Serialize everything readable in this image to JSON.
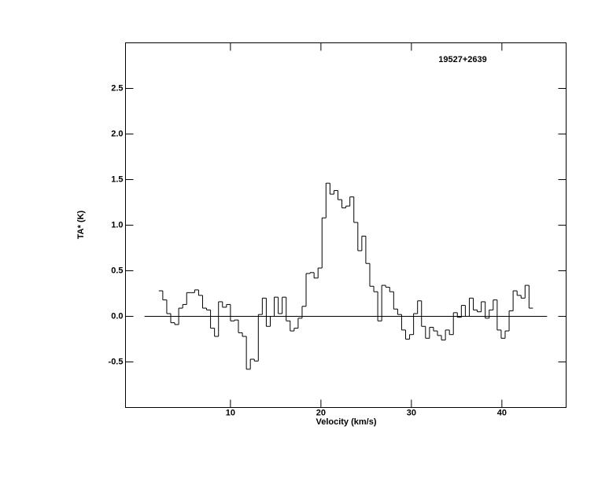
{
  "chart_data": {
    "type": "step",
    "title": "19527+2639",
    "xlabel": "Velocity (km/s)",
    "ylabel": "TA* (K)",
    "xlim": [
      -1.6,
      47.1
    ],
    "ylim": [
      -1.0,
      3.0
    ],
    "xticks": [
      10,
      20,
      30,
      40
    ],
    "yticks": [
      -0.5,
      {
        "value": 0,
        "label": "0.0"
      },
      0.5,
      {
        "value": 1,
        "label": "1.0"
      },
      1.5,
      {
        "value": 2,
        "label": "2.0"
      },
      2.5
    ],
    "hline": 0,
    "hline_xlim": [
      0.5,
      45
    ],
    "color": "#000000",
    "x": [
      2.3,
      2.74,
      3.18,
      3.62,
      4.06,
      4.5,
      4.94,
      5.38,
      5.82,
      6.26,
      6.7,
      7.14,
      7.58,
      8.02,
      8.46,
      8.9,
      9.34,
      9.78,
      10.22,
      10.66,
      11.1,
      11.54,
      11.98,
      12.42,
      12.86,
      13.3,
      13.74,
      14.18,
      14.62,
      15.06,
      15.5,
      15.94,
      16.38,
      16.82,
      17.26,
      17.7,
      18.14,
      18.58,
      19.02,
      19.46,
      19.9,
      20.34,
      20.78,
      21.22,
      21.66,
      22.1,
      22.54,
      22.98,
      23.42,
      23.86,
      24.3,
      24.74,
      25.18,
      25.62,
      26.06,
      26.5,
      26.94,
      27.38,
      27.82,
      28.26,
      28.7,
      29.14,
      29.58,
      30.02,
      30.46,
      30.9,
      31.34,
      31.78,
      32.22,
      32.66,
      33.1,
      33.54,
      33.98,
      34.42,
      34.86,
      35.3,
      35.74,
      36.18,
      36.62,
      37.06,
      37.5,
      37.94,
      38.38,
      38.82,
      39.26,
      39.7,
      40.14,
      40.58,
      41.02,
      41.46,
      41.9,
      42.34,
      42.78,
      43.22
    ],
    "values": [
      0.28,
      0.18,
      0.03,
      -0.07,
      -0.09,
      0.09,
      0.13,
      0.26,
      0.26,
      0.29,
      0.23,
      0.09,
      0.07,
      -0.13,
      -0.22,
      0.16,
      0.1,
      0.13,
      -0.05,
      -0.04,
      -0.18,
      -0.22,
      -0.58,
      -0.47,
      -0.49,
      0.02,
      0.2,
      -0.11,
      0.0,
      0.21,
      0.03,
      0.21,
      -0.05,
      -0.16,
      -0.13,
      -0.02,
      0.11,
      0.47,
      0.48,
      0.42,
      0.53,
      1.08,
      1.46,
      1.34,
      1.38,
      1.28,
      1.19,
      1.21,
      1.31,
      1.03,
      0.72,
      0.88,
      0.58,
      0.33,
      0.27,
      -0.05,
      0.34,
      0.32,
      0.27,
      0.08,
      0.02,
      -0.15,
      -0.25,
      -0.2,
      0.03,
      0.17,
      -0.11,
      -0.24,
      -0.12,
      -0.16,
      -0.21,
      -0.26,
      -0.15,
      -0.2,
      0.04,
      -0.01,
      0.12,
      0.0,
      0.2,
      0.07,
      0.05,
      0.16,
      -0.02,
      0.07,
      0.18,
      -0.15,
      -0.24,
      -0.16,
      0.06,
      0.28,
      0.23,
      0.2,
      0.34,
      0.09
    ]
  }
}
